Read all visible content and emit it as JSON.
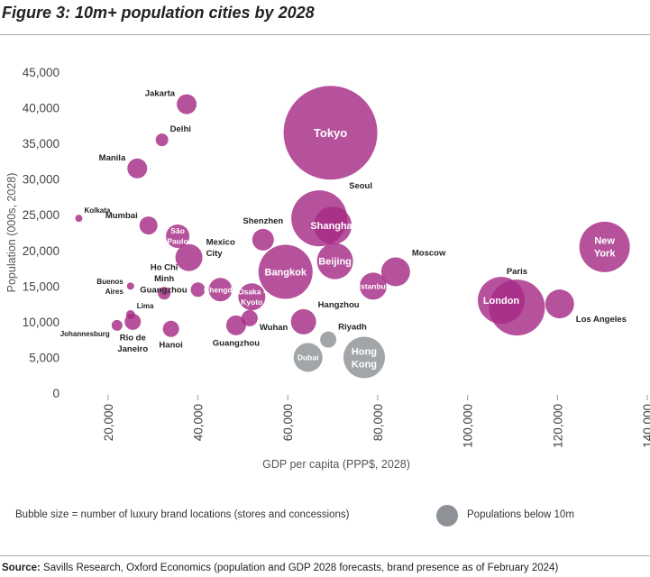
{
  "figure_title": "Figure 3: 10m+ population cities by 2028",
  "footnote": "Bubble size = number of luxury brand locations (stores and concessions)",
  "legend": {
    "label": "Populations below 10m",
    "color": "#8e9296"
  },
  "source": {
    "label": "Source:",
    "text": "Savills Research, Oxford Economics (population and GDP 2028 forecasts, brand presence as of February 2024)"
  },
  "colors": {
    "primary": "#a62b86",
    "grey": "#8e9296",
    "axis": "#444444"
  },
  "chart_data": {
    "type": "scatter",
    "xlabel": "GDP per capita (PPP$, 2028)",
    "ylabel": "Population (000s, 2028)",
    "xlim": [
      10000,
      140000
    ],
    "ylim": [
      0,
      45000
    ],
    "x_ticks": [
      20000,
      40000,
      60000,
      80000,
      100000,
      120000,
      140000
    ],
    "x_tick_labels": [
      "20,000",
      "40,000",
      "60,000",
      "80,000",
      "100,000",
      "120,000",
      "140,000"
    ],
    "y_ticks": [
      0,
      5000,
      10000,
      15000,
      20000,
      25000,
      30000,
      35000,
      40000,
      45000
    ],
    "y_tick_labels": [
      "0",
      "5,000",
      "10,000",
      "15,000",
      "20,000",
      "25,000",
      "30,000",
      "35,000",
      "40,000",
      "45,000"
    ],
    "size_meaning": "number of luxury brand locations (stores and concessions)",
    "points": [
      {
        "name": "Tokyo",
        "label": "Tokyo",
        "x": 69500,
        "y": 36500,
        "size": 52,
        "group": "10m+",
        "label_pos": "inside"
      },
      {
        "name": "Seoul",
        "label": "Seoul",
        "x": 67000,
        "y": 24500,
        "size": 31,
        "group": "10m+",
        "label_pos": "upper-right"
      },
      {
        "name": "New York",
        "label": "New York",
        "x": 130500,
        "y": 20500,
        "size": 28,
        "group": "10m+",
        "label_pos": "inside"
      },
      {
        "name": "Paris",
        "label": "Paris",
        "x": 111000,
        "y": 12000,
        "size": 31,
        "group": "10m+",
        "label_pos": "above"
      },
      {
        "name": "London",
        "label": "London",
        "x": 107500,
        "y": 13000,
        "size": 26,
        "group": "10m+",
        "label_pos": "inside"
      },
      {
        "name": "Los Angeles",
        "label": "Los Angeles",
        "x": 120500,
        "y": 12500,
        "size": 16,
        "group": "10m+",
        "label_pos": "lower-right"
      },
      {
        "name": "Shanghai",
        "label": "Shanghai",
        "x": 70000,
        "y": 23500,
        "size": 21,
        "group": "10m+",
        "label_pos": "inside"
      },
      {
        "name": "Beijing",
        "label": "Beijing",
        "x": 70500,
        "y": 18500,
        "size": 20,
        "group": "10m+",
        "label_pos": "inside"
      },
      {
        "name": "Bangkok",
        "label": "Bangkok",
        "x": 59500,
        "y": 17000,
        "size": 30,
        "group": "10m+",
        "label_pos": "inside"
      },
      {
        "name": "Istanbul",
        "label": "Istanbul",
        "x": 79000,
        "y": 15000,
        "size": 15,
        "group": "10m+",
        "label_pos": "inside"
      },
      {
        "name": "Moscow",
        "label": "Moscow",
        "x": 84000,
        "y": 17000,
        "size": 16,
        "group": "10m+",
        "label_pos": "upper-right"
      },
      {
        "name": "Jakarta",
        "label": "Jakarta",
        "x": 37500,
        "y": 40500,
        "size": 11,
        "group": "10m+",
        "label_pos": "upper-left"
      },
      {
        "name": "Delhi",
        "label": "Delhi",
        "x": 32000,
        "y": 35500,
        "size": 7,
        "group": "10m+",
        "label_pos": "upper-right"
      },
      {
        "name": "Manila",
        "label": "Manila",
        "x": 26500,
        "y": 31500,
        "size": 11,
        "group": "10m+",
        "label_pos": "upper-left"
      },
      {
        "name": "Kolkata",
        "label": "Kolkata",
        "x": 13500,
        "y": 24500,
        "size": 4,
        "group": "10m+",
        "label_pos": "upper-right"
      },
      {
        "name": "Mumbai",
        "label": "Mumbai",
        "x": 29000,
        "y": 23500,
        "size": 10,
        "group": "10m+",
        "label_pos": "upper-left"
      },
      {
        "name": "São Paulo",
        "label": "São Paulo",
        "x": 35500,
        "y": 22000,
        "size": 13,
        "group": "10m+",
        "label_pos": "inside"
      },
      {
        "name": "Mexico City",
        "label": "Mexico City",
        "x": 38000,
        "y": 19000,
        "size": 15,
        "group": "10m+",
        "label_pos": "right"
      },
      {
        "name": "Shenzhen",
        "label": "Shenzhen",
        "x": 54500,
        "y": 21500,
        "size": 12,
        "group": "10m+",
        "label_pos": "above"
      },
      {
        "name": "Ho Chi Minh",
        "label": "Ho Chi Minh",
        "x": 32500,
        "y": 14000,
        "size": 7,
        "group": "10m+",
        "label_pos": "above"
      },
      {
        "name": "Buenos Aires",
        "label": "Buenos Aires",
        "x": 25000,
        "y": 15000,
        "size": 4,
        "group": "10m+",
        "label_pos": "left"
      },
      {
        "name": "Guangzhou",
        "label": "Guangzhou",
        "x": 40000,
        "y": 14500,
        "size": 8,
        "group": "10m+",
        "label_pos": "left"
      },
      {
        "name": "Chengdu",
        "label": "Chengdu",
        "x": 45000,
        "y": 14500,
        "size": 13,
        "group": "10m+",
        "label_pos": "inside"
      },
      {
        "name": "Osaka - Kyoto",
        "label": "Osaka - Kyoto",
        "x": 52000,
        "y": 13500,
        "size": 15,
        "group": "10m+",
        "label_pos": "inside"
      },
      {
        "name": "Lima",
        "label": "Lima",
        "x": 25000,
        "y": 11000,
        "size": 5,
        "group": "10m+",
        "label_pos": "upper-right"
      },
      {
        "name": "Johannesburg",
        "label": "Johannesburg",
        "x": 22000,
        "y": 9500,
        "size": 6,
        "group": "10m+",
        "label_pos": "lower-left"
      },
      {
        "name": "Rio de Janeiro",
        "label": "Rio de Janeiro",
        "x": 25500,
        "y": 10000,
        "size": 9,
        "group": "10m+",
        "label_pos": "below"
      },
      {
        "name": "Hanoi",
        "label": "Hanoi",
        "x": 34000,
        "y": 9000,
        "size": 9,
        "group": "10m+",
        "label_pos": "below"
      },
      {
        "name": "Guangzhou (2)",
        "label": "Guangzhou",
        "x": 48500,
        "y": 9500,
        "size": 11,
        "group": "10m+",
        "label_pos": "below"
      },
      {
        "name": "Wuhan",
        "label": "Wuhan",
        "x": 51500,
        "y": 10500,
        "size": 9,
        "group": "10m+",
        "label_pos": "lower-right"
      },
      {
        "name": "Hangzhou",
        "label": "Hangzhou",
        "x": 63500,
        "y": 10000,
        "size": 14,
        "group": "10m+",
        "label_pos": "upper-right"
      },
      {
        "name": "Dubai",
        "label": "Dubai",
        "x": 64500,
        "y": 5000,
        "size": 16,
        "group": "below 10m",
        "label_pos": "inside"
      },
      {
        "name": "Riyadh",
        "label": "Riyadh",
        "x": 69000,
        "y": 7500,
        "size": 9,
        "group": "below 10m",
        "label_pos": "upper-right"
      },
      {
        "name": "Hong Kong",
        "label": "Hong Kong",
        "x": 77000,
        "y": 5000,
        "size": 23,
        "group": "below 10m",
        "label_pos": "inside"
      }
    ]
  }
}
